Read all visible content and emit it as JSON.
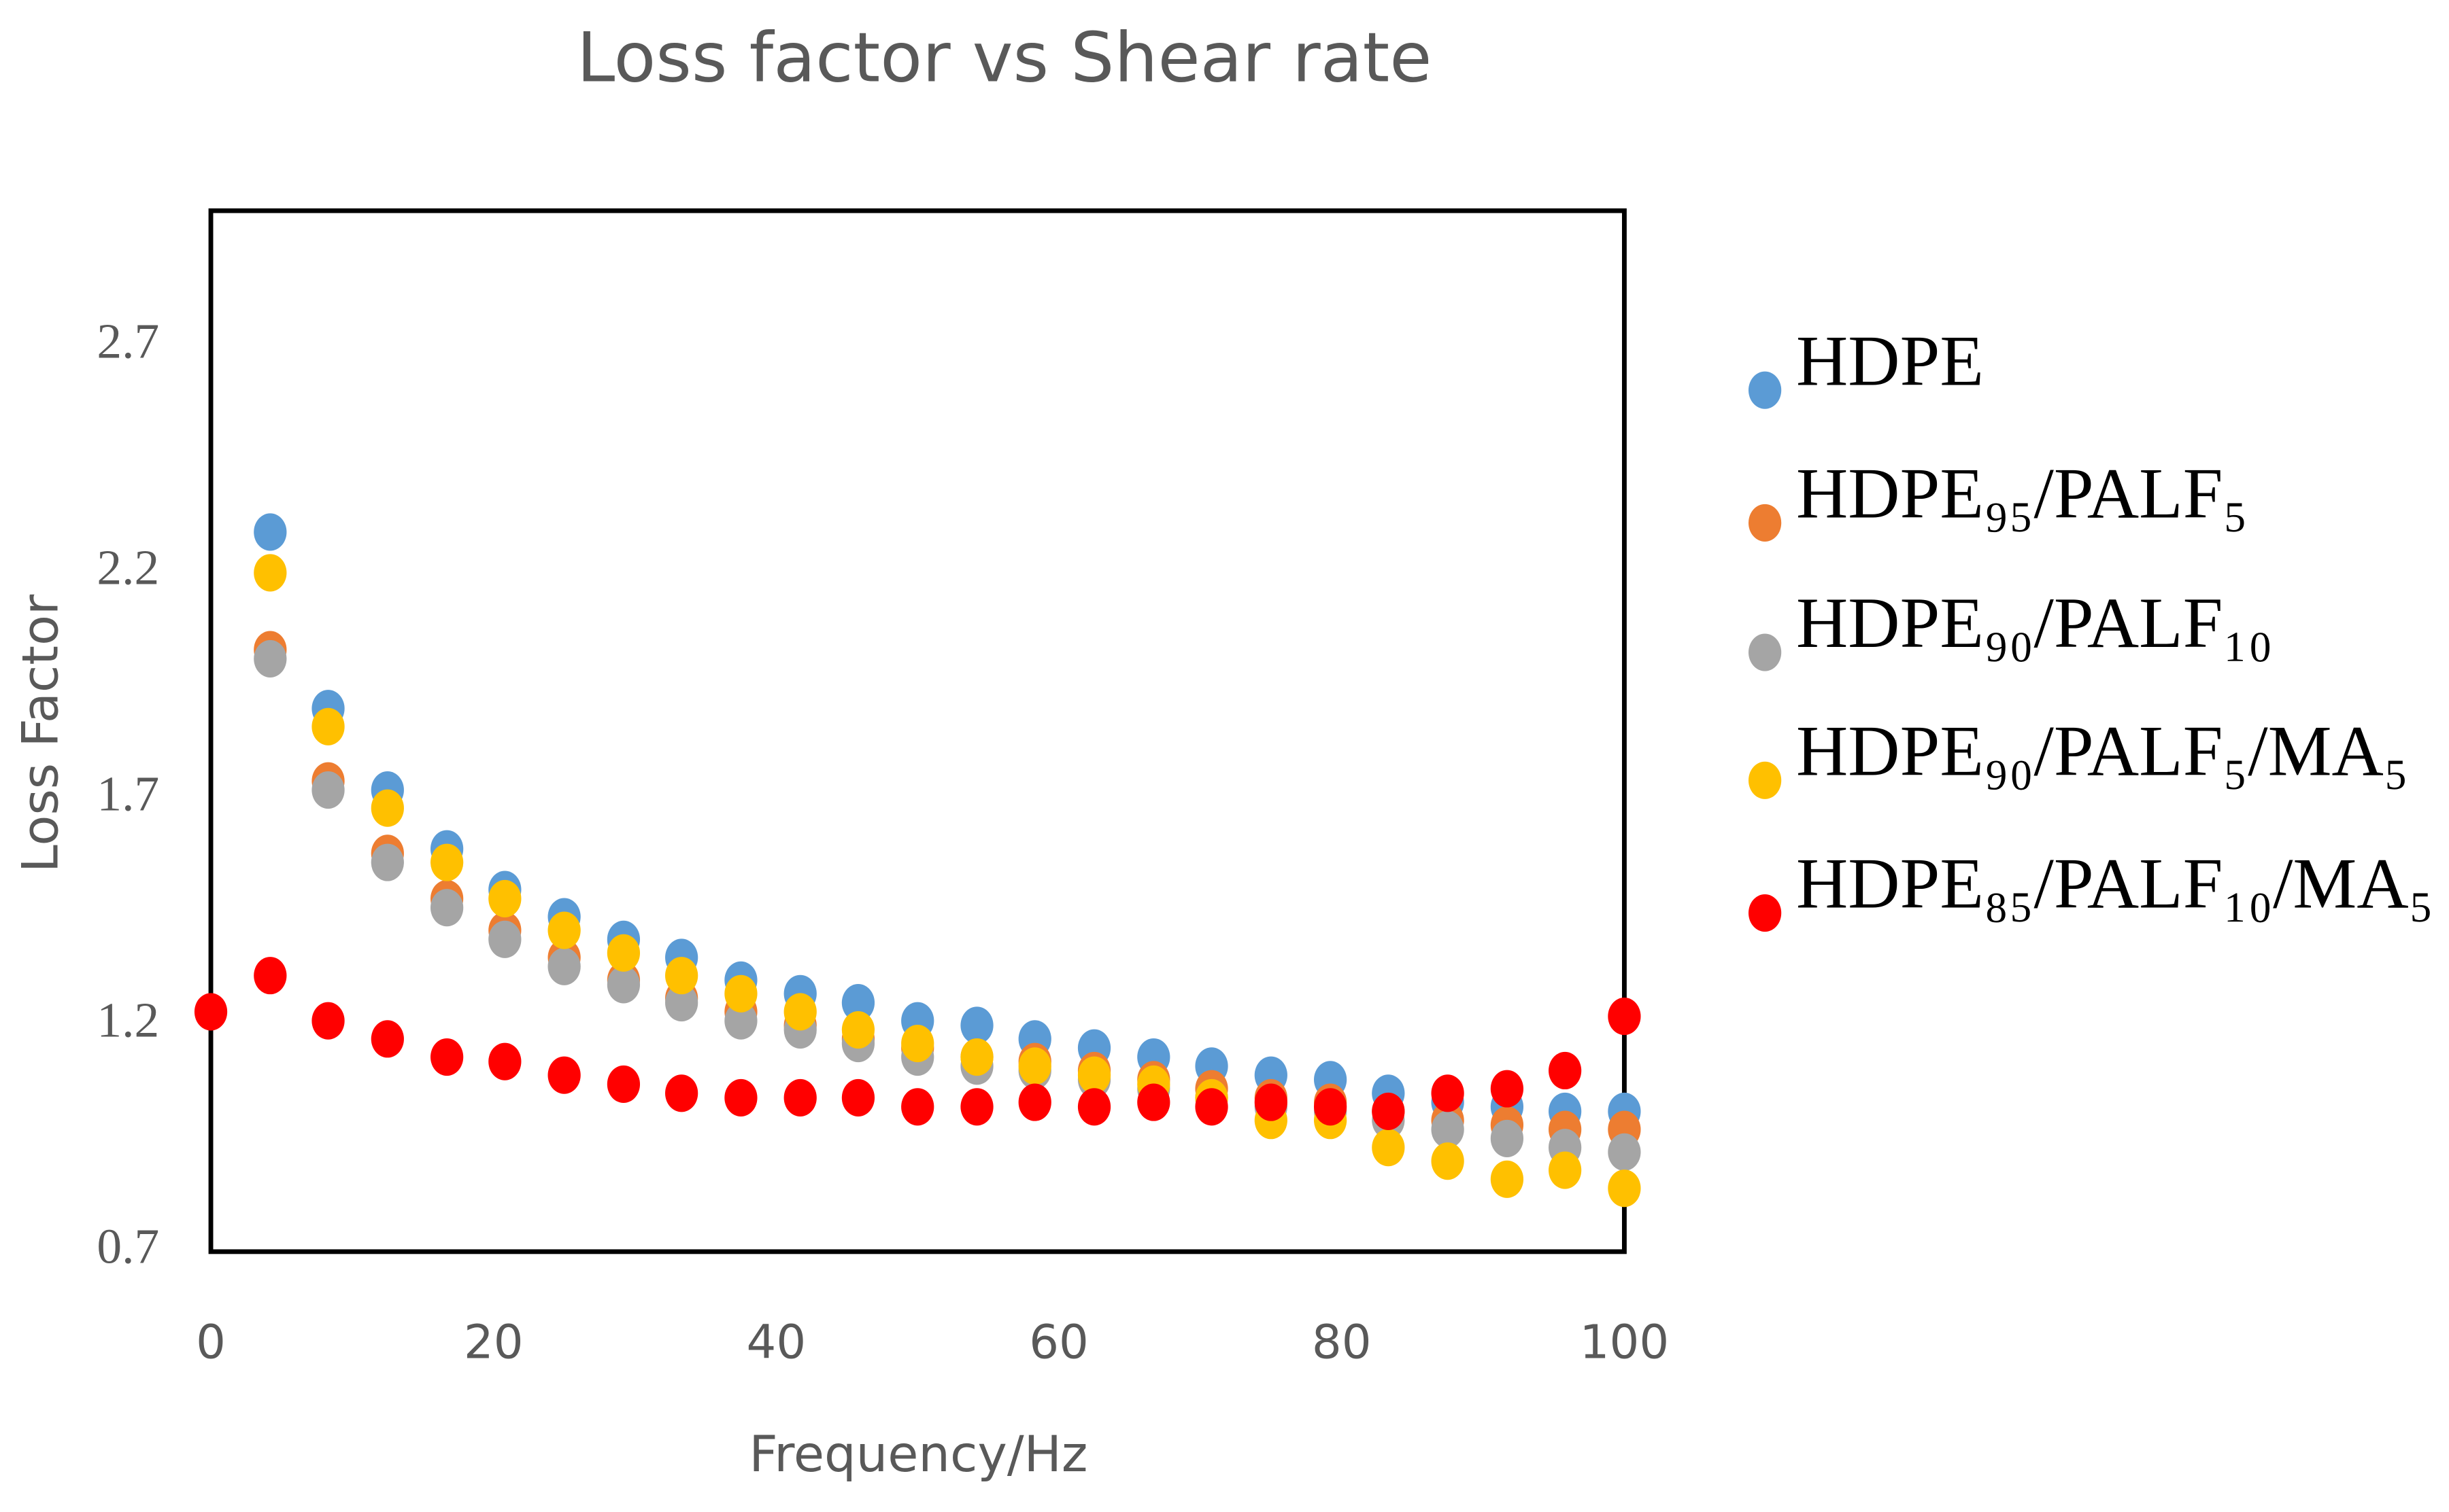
{
  "chart_data": {
    "type": "scatter",
    "title": "Loss factor vs Shear rate",
    "x_label": "Frequency/Hz",
    "y_label": "Loss Factor",
    "x": [
      0,
      4.2,
      8.3,
      12.5,
      16.7,
      20.8,
      25,
      29.2,
      33.3,
      37.5,
      41.7,
      45.8,
      50,
      54.2,
      58.3,
      62.5,
      66.7,
      70.8,
      75,
      79.2,
      83.3,
      87.5,
      91.7,
      95.8,
      100
    ],
    "series": [
      {
        "name": "HDPE",
        "color": "#5b9bd5",
        "values": [
          null,
          2.29,
          1.9,
          1.72,
          1.59,
          1.5,
          1.44,
          1.39,
          1.35,
          1.3,
          1.27,
          1.25,
          1.21,
          1.2,
          1.17,
          1.15,
          1.13,
          1.11,
          1.09,
          1.08,
          1.05,
          1.03,
          1.02,
          1.01,
          1.01
        ]
      },
      {
        "name": "HDPE₉₅/PALF₅",
        "color": "#ed7d31",
        "values": [
          null,
          2.03,
          1.74,
          1.58,
          1.48,
          1.41,
          1.35,
          1.3,
          1.26,
          1.23,
          1.2,
          1.17,
          1.15,
          1.13,
          1.12,
          1.1,
          1.08,
          1.06,
          1.04,
          1.03,
          1.01,
          0.99,
          0.98,
          0.97,
          0.97
        ]
      },
      {
        "name": "HDPE₉₀/PALF₁₀",
        "color": "#a5a5a5",
        "values": [
          null,
          2.01,
          1.72,
          1.56,
          1.46,
          1.39,
          1.33,
          1.29,
          1.25,
          1.21,
          1.19,
          1.16,
          1.13,
          1.11,
          1.1,
          1.08,
          1.06,
          1.04,
          1.02,
          1.01,
          0.99,
          0.97,
          0.95,
          0.93,
          0.92
        ]
      },
      {
        "name": "HDPE₉₀/PALF₅/MA₅",
        "color": "#ffc000",
        "values": [
          null,
          2.2,
          1.86,
          1.68,
          1.56,
          1.48,
          1.41,
          1.36,
          1.31,
          1.27,
          1.23,
          1.19,
          1.16,
          1.13,
          1.11,
          1.09,
          1.07,
          1.04,
          0.99,
          0.99,
          0.93,
          0.9,
          0.86,
          0.88,
          0.84
        ]
      },
      {
        "name": "HDPE₈₅/PALF₁₀/MA₅",
        "color": "#ff0000",
        "values": [
          1.23,
          1.31,
          1.21,
          1.17,
          1.13,
          1.12,
          1.09,
          1.07,
          1.05,
          1.04,
          1.04,
          1.04,
          1.02,
          1.02,
          1.03,
          1.02,
          1.03,
          1.02,
          1.03,
          1.02,
          1.01,
          1.05,
          1.06,
          1.1,
          1.22
        ]
      }
    ],
    "xlim": [
      0,
      100
    ],
    "xticks": [
      0,
      20,
      40,
      60,
      80,
      100
    ],
    "ylim": [
      0.7,
      3.0
    ],
    "yticks": [
      0.7,
      1.2,
      1.7,
      2.2,
      2.7
    ],
    "grid": false,
    "legend": "right"
  }
}
